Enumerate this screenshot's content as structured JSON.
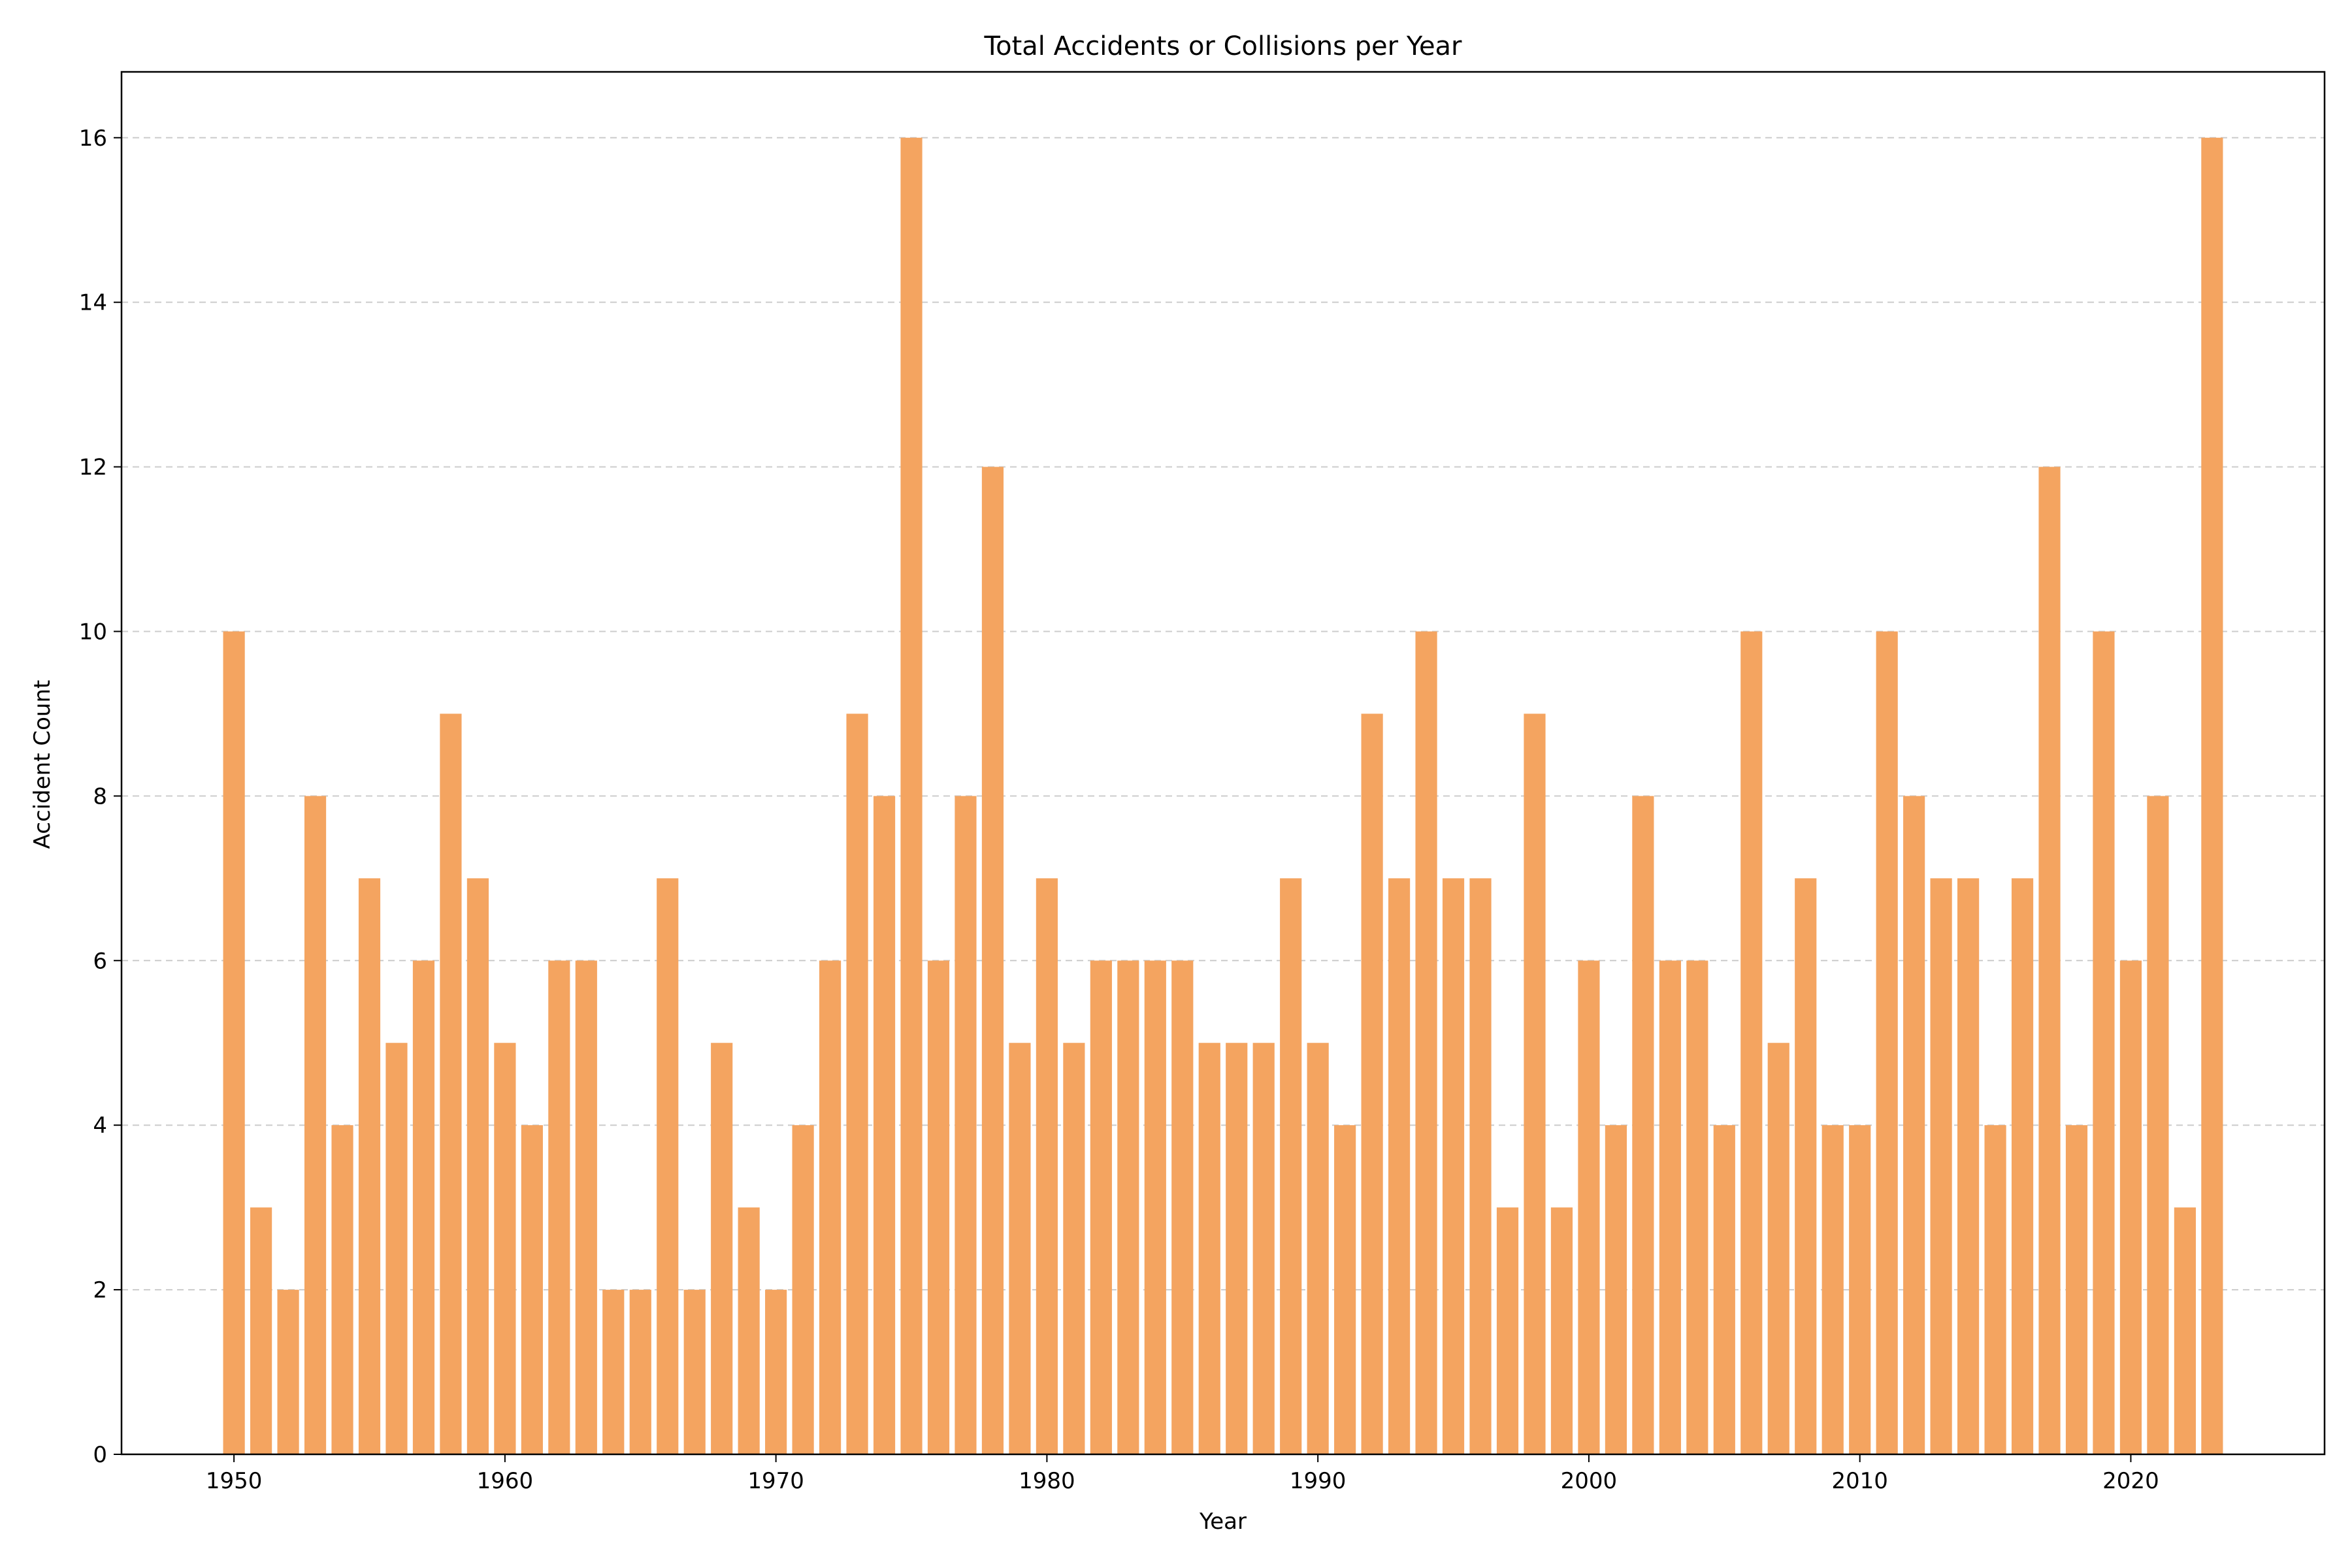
{
  "chart_data": {
    "type": "bar",
    "title": "Total Accidents or Collisions per Year",
    "xlabel": "Year",
    "ylabel": "Accident Count",
    "x": [
      1950,
      1951,
      1952,
      1953,
      1954,
      1955,
      1956,
      1957,
      1958,
      1959,
      1960,
      1961,
      1962,
      1963,
      1964,
      1965,
      1966,
      1967,
      1968,
      1969,
      1970,
      1971,
      1972,
      1973,
      1974,
      1975,
      1976,
      1977,
      1978,
      1979,
      1980,
      1981,
      1982,
      1983,
      1984,
      1985,
      1986,
      1987,
      1988,
      1989,
      1990,
      1991,
      1992,
      1993,
      1994,
      1995,
      1996,
      1997,
      1998,
      1999,
      2000,
      2001,
      2002,
      2003,
      2004,
      2005,
      2006,
      2007,
      2008,
      2009,
      2010,
      2011,
      2012,
      2013,
      2014,
      2015,
      2016,
      2017,
      2018,
      2019,
      2020,
      2021,
      2022,
      2023
    ],
    "values": [
      10,
      3,
      2,
      8,
      4,
      7,
      5,
      6,
      9,
      7,
      5,
      4,
      6,
      6,
      2,
      2,
      7,
      2,
      5,
      3,
      2,
      4,
      6,
      9,
      8,
      16,
      6,
      8,
      12,
      5,
      7,
      5,
      6,
      6,
      6,
      6,
      5,
      5,
      5,
      7,
      5,
      4,
      9,
      7,
      10,
      7,
      7,
      3,
      9,
      3,
      6,
      4,
      8,
      6,
      6,
      4,
      10,
      5,
      7,
      4,
      4,
      10,
      8,
      7,
      7,
      4,
      7,
      12,
      4,
      10,
      6,
      8,
      3,
      16
    ],
    "xlim": [
      1945.85,
      2027.15
    ],
    "ylim": [
      0,
      16.8
    ],
    "xticks": [
      1950,
      1960,
      1970,
      1980,
      1990,
      2000,
      2010,
      2020
    ],
    "yticks": [
      0,
      2,
      4,
      6,
      8,
      10,
      12,
      14,
      16
    ],
    "grid": "y-dashed",
    "legend": "none",
    "colors": {
      "bar": "#f4a460",
      "grid": "#cccccc",
      "axis": "#000000"
    }
  }
}
